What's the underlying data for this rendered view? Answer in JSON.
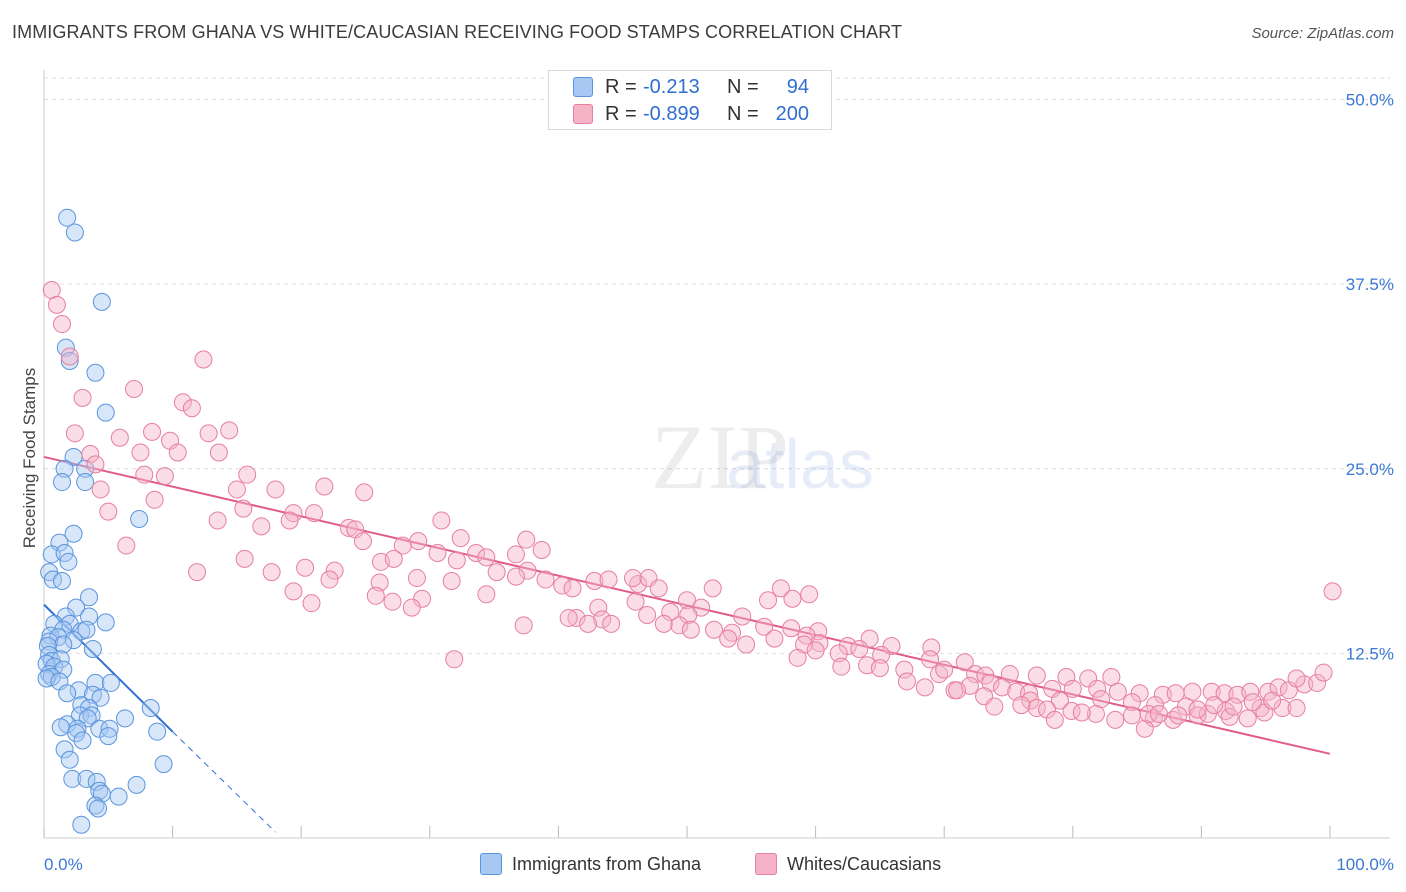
{
  "chart_data": {
    "type": "scatter",
    "title": "IMMIGRANTS FROM GHANA VS WHITE/CAUCASIAN RECEIVING FOOD STAMPS CORRELATION CHART",
    "source": "Source: ZipAtlas.com",
    "ylabel": "Receiving Food Stamps",
    "xlabel": "",
    "xlim": [
      0,
      100
    ],
    "ylim": [
      0,
      52
    ],
    "x_tick_labels": [
      "0.0%",
      "100.0%"
    ],
    "y_tick_values": [
      12.5,
      25.0,
      37.5,
      50.0
    ],
    "y_tick_labels": [
      "12.5%",
      "25.0%",
      "37.5%",
      "50.0%"
    ],
    "grid": true,
    "legend": {
      "position": "top-center",
      "entries": [
        {
          "r_label": "R =",
          "r": "-0.213",
          "n_label": "N =",
          "n": "94",
          "color": "#a7c8f2"
        },
        {
          "r_label": "R =",
          "r": "-0.899",
          "n_label": "N =",
          "n": "200",
          "color": "#f5b3c8"
        }
      ]
    },
    "watermark": "ZIPatlas",
    "series": [
      {
        "name": "Immigrants from Ghana",
        "color": "#a7c8f2",
        "stroke": "#5b95dd",
        "trend": {
          "x": [
            0,
            10
          ],
          "y": [
            15.8,
            7.2
          ],
          "dashed_to": [
            18,
            0.4
          ],
          "color": "#2f6fd0"
        },
        "points": [
          [
            1.8,
            42
          ],
          [
            2.4,
            41
          ],
          [
            4.5,
            36.3
          ],
          [
            1.7,
            33.2
          ],
          [
            2.0,
            32.3
          ],
          [
            4.0,
            31.5
          ],
          [
            4.8,
            28.8
          ],
          [
            2.3,
            25.8
          ],
          [
            1.6,
            25.0
          ],
          [
            3.2,
            25.0
          ],
          [
            1.4,
            24.1
          ],
          [
            3.2,
            24.1
          ],
          [
            7.4,
            21.6
          ],
          [
            2.3,
            20.6
          ],
          [
            1.2,
            20.0
          ],
          [
            0.6,
            19.2
          ],
          [
            1.6,
            19.3
          ],
          [
            1.9,
            18.7
          ],
          [
            0.4,
            18.0
          ],
          [
            0.7,
            17.5
          ],
          [
            1.4,
            17.4
          ],
          [
            3.5,
            16.3
          ],
          [
            2.5,
            15.6
          ],
          [
            1.7,
            15.0
          ],
          [
            3.5,
            15.0
          ],
          [
            4.8,
            14.6
          ],
          [
            2.0,
            14.5
          ],
          [
            0.8,
            14.5
          ],
          [
            1.5,
            14.1
          ],
          [
            2.9,
            14.0
          ],
          [
            3.3,
            14.1
          ],
          [
            0.5,
            13.7
          ],
          [
            1.1,
            13.6
          ],
          [
            0.4,
            13.3
          ],
          [
            2.3,
            13.4
          ],
          [
            1.5,
            13.1
          ],
          [
            0.3,
            13.0
          ],
          [
            3.8,
            12.8
          ],
          [
            0.4,
            12.4
          ],
          [
            0.6,
            12.0
          ],
          [
            1.3,
            12.1
          ],
          [
            0.2,
            11.8
          ],
          [
            0.8,
            11.6
          ],
          [
            1.5,
            11.4
          ],
          [
            0.4,
            11.1
          ],
          [
            0.6,
            10.9
          ],
          [
            0.2,
            10.8
          ],
          [
            1.2,
            10.6
          ],
          [
            4.0,
            10.5
          ],
          [
            5.2,
            10.5
          ],
          [
            2.7,
            10.0
          ],
          [
            1.8,
            9.8
          ],
          [
            3.8,
            9.7
          ],
          [
            4.4,
            9.5
          ],
          [
            2.9,
            9.0
          ],
          [
            3.5,
            8.8
          ],
          [
            8.3,
            8.8
          ],
          [
            2.8,
            8.3
          ],
          [
            3.7,
            8.3
          ],
          [
            6.3,
            8.1
          ],
          [
            3.4,
            8.1
          ],
          [
            1.8,
            7.7
          ],
          [
            1.3,
            7.5
          ],
          [
            2.6,
            7.4
          ],
          [
            4.3,
            7.4
          ],
          [
            5.1,
            7.4
          ],
          [
            8.8,
            7.2
          ],
          [
            2.5,
            7.1
          ],
          [
            5.0,
            6.9
          ],
          [
            3.0,
            6.6
          ],
          [
            1.6,
            6.0
          ],
          [
            2.0,
            5.3
          ],
          [
            9.3,
            5.0
          ],
          [
            2.2,
            4.0
          ],
          [
            3.3,
            4.0
          ],
          [
            4.1,
            3.8
          ],
          [
            7.2,
            3.6
          ],
          [
            4.3,
            3.2
          ],
          [
            4.5,
            3.0
          ],
          [
            5.8,
            2.8
          ],
          [
            4.0,
            2.2
          ],
          [
            4.2,
            2.0
          ],
          [
            2.9,
            0.9
          ]
        ]
      },
      {
        "name": "Whites/Caucasians",
        "color": "#f5b3c8",
        "stroke": "#e77fa0",
        "trend": {
          "x": [
            0,
            100
          ],
          "y": [
            25.8,
            5.7
          ],
          "color": "#e05c8a"
        },
        "points": [
          [
            0.6,
            37.1
          ],
          [
            1.0,
            36.1
          ],
          [
            1.4,
            34.8
          ],
          [
            2.0,
            32.6
          ],
          [
            12.4,
            32.4
          ],
          [
            3.0,
            29.8
          ],
          [
            7.0,
            30.4
          ],
          [
            10.8,
            29.5
          ],
          [
            11.5,
            29.1
          ],
          [
            8.4,
            27.5
          ],
          [
            12.8,
            27.4
          ],
          [
            14.4,
            27.6
          ],
          [
            2.4,
            27.4
          ],
          [
            5.9,
            27.1
          ],
          [
            9.8,
            26.9
          ],
          [
            3.6,
            26.0
          ],
          [
            7.5,
            26.1
          ],
          [
            10.4,
            26.1
          ],
          [
            13.6,
            26.1
          ],
          [
            4.0,
            25.3
          ],
          [
            15.8,
            24.6
          ],
          [
            7.8,
            24.6
          ],
          [
            9.4,
            24.5
          ],
          [
            4.4,
            23.6
          ],
          [
            21.8,
            23.8
          ],
          [
            15.0,
            23.6
          ],
          [
            18.0,
            23.6
          ],
          [
            24.9,
            23.4
          ],
          [
            8.6,
            22.9
          ],
          [
            5.0,
            22.1
          ],
          [
            21.0,
            22.0
          ],
          [
            15.5,
            22.3
          ],
          [
            19.4,
            22.0
          ],
          [
            13.5,
            21.5
          ],
          [
            16.9,
            21.1
          ],
          [
            19.1,
            21.5
          ],
          [
            23.7,
            21.0
          ],
          [
            30.9,
            21.5
          ],
          [
            32.4,
            20.3
          ],
          [
            37.5,
            20.2
          ],
          [
            24.2,
            20.9
          ],
          [
            36.7,
            19.2
          ],
          [
            24.8,
            20.1
          ],
          [
            29.1,
            20.1
          ],
          [
            30.6,
            19.3
          ],
          [
            33.6,
            19.3
          ],
          [
            38.7,
            19.5
          ],
          [
            6.4,
            19.8
          ],
          [
            27.9,
            19.8
          ],
          [
            26.2,
            18.7
          ],
          [
            34.4,
            19.0
          ],
          [
            27.2,
            18.9
          ],
          [
            15.6,
            18.9
          ],
          [
            20.3,
            18.3
          ],
          [
            32.1,
            18.8
          ],
          [
            37.6,
            18.1
          ],
          [
            35.2,
            18.0
          ],
          [
            11.9,
            18.0
          ],
          [
            17.7,
            18.0
          ],
          [
            22.6,
            18.1
          ],
          [
            29.0,
            17.6
          ],
          [
            42.8,
            17.4
          ],
          [
            31.7,
            17.4
          ],
          [
            36.7,
            17.7
          ],
          [
            39.0,
            17.5
          ],
          [
            46.2,
            17.2
          ],
          [
            43.9,
            17.5
          ],
          [
            45.8,
            17.6
          ],
          [
            47.0,
            17.6
          ],
          [
            22.2,
            17.5
          ],
          [
            26.1,
            17.3
          ],
          [
            40.3,
            17.1
          ],
          [
            41.1,
            16.9
          ],
          [
            52.0,
            16.9
          ],
          [
            47.8,
            16.9
          ],
          [
            57.3,
            16.9
          ],
          [
            19.4,
            16.7
          ],
          [
            34.4,
            16.5
          ],
          [
            25.8,
            16.4
          ],
          [
            27.1,
            16.0
          ],
          [
            46.0,
            16.0
          ],
          [
            29.4,
            16.2
          ],
          [
            50.0,
            16.1
          ],
          [
            56.3,
            16.1
          ],
          [
            58.2,
            16.2
          ],
          [
            20.8,
            15.9
          ],
          [
            28.6,
            15.6
          ],
          [
            43.1,
            15.6
          ],
          [
            51.1,
            15.6
          ],
          [
            59.5,
            16.5
          ],
          [
            46.9,
            15.1
          ],
          [
            48.7,
            15.3
          ],
          [
            50.1,
            15.1
          ],
          [
            54.3,
            15.0
          ],
          [
            41.4,
            14.9
          ],
          [
            40.8,
            14.9
          ],
          [
            43.4,
            14.8
          ],
          [
            37.3,
            14.4
          ],
          [
            42.3,
            14.5
          ],
          [
            44.1,
            14.5
          ],
          [
            48.2,
            14.5
          ],
          [
            49.4,
            14.4
          ],
          [
            50.3,
            14.1
          ],
          [
            52.1,
            14.1
          ],
          [
            53.5,
            13.9
          ],
          [
            56.0,
            14.3
          ],
          [
            58.1,
            14.2
          ],
          [
            60.2,
            14.0
          ],
          [
            59.3,
            13.7
          ],
          [
            53.2,
            13.5
          ],
          [
            56.8,
            13.5
          ],
          [
            54.6,
            13.1
          ],
          [
            60.3,
            13.2
          ],
          [
            59.1,
            13.1
          ],
          [
            62.5,
            13.0
          ],
          [
            64.2,
            13.5
          ],
          [
            65.9,
            13.0
          ],
          [
            69.0,
            12.9
          ],
          [
            60.0,
            12.7
          ],
          [
            61.8,
            12.5
          ],
          [
            63.4,
            12.8
          ],
          [
            65.1,
            12.4
          ],
          [
            68.9,
            12.1
          ],
          [
            58.6,
            12.2
          ],
          [
            71.6,
            11.9
          ],
          [
            62.0,
            11.6
          ],
          [
            64.0,
            11.7
          ],
          [
            66.9,
            11.4
          ],
          [
            69.6,
            11.1
          ],
          [
            72.4,
            11.1
          ],
          [
            73.2,
            11.0
          ],
          [
            75.1,
            11.1
          ],
          [
            77.2,
            11.0
          ],
          [
            79.5,
            10.9
          ],
          [
            81.2,
            10.8
          ],
          [
            83.0,
            10.9
          ],
          [
            65.0,
            11.5
          ],
          [
            70.0,
            11.4
          ],
          [
            31.9,
            12.1
          ],
          [
            67.1,
            10.6
          ],
          [
            68.5,
            10.2
          ],
          [
            70.8,
            10.0
          ],
          [
            72.0,
            10.3
          ],
          [
            73.6,
            10.5
          ],
          [
            74.5,
            10.2
          ],
          [
            75.6,
            9.9
          ],
          [
            76.6,
            9.8
          ],
          [
            78.4,
            10.1
          ],
          [
            80.0,
            10.1
          ],
          [
            81.9,
            10.1
          ],
          [
            83.5,
            9.9
          ],
          [
            85.2,
            9.8
          ],
          [
            87.0,
            9.7
          ],
          [
            88.0,
            9.8
          ],
          [
            89.3,
            9.9
          ],
          [
            90.8,
            9.9
          ],
          [
            91.8,
            9.8
          ],
          [
            92.8,
            9.7
          ],
          [
            93.8,
            9.9
          ],
          [
            95.2,
            9.9
          ],
          [
            96.0,
            10.2
          ],
          [
            96.8,
            10.0
          ],
          [
            98.0,
            10.4
          ],
          [
            99.0,
            10.5
          ],
          [
            99.5,
            11.2
          ],
          [
            100.2,
            16.7
          ],
          [
            97.4,
            10.8
          ],
          [
            71.0,
            10.0
          ],
          [
            73.1,
            9.6
          ],
          [
            76.7,
            9.3
          ],
          [
            79.0,
            9.3
          ],
          [
            82.2,
            9.4
          ],
          [
            84.6,
            9.2
          ],
          [
            86.4,
            9.0
          ],
          [
            88.8,
            8.9
          ],
          [
            91.9,
            8.6
          ],
          [
            94.6,
            8.8
          ],
          [
            73.9,
            8.9
          ],
          [
            77.2,
            8.8
          ],
          [
            79.9,
            8.6
          ],
          [
            81.8,
            8.4
          ],
          [
            83.3,
            8.0
          ],
          [
            84.6,
            8.3
          ],
          [
            86.3,
            8.1
          ],
          [
            87.8,
            8.0
          ],
          [
            88.2,
            8.3
          ],
          [
            89.7,
            8.3
          ],
          [
            90.5,
            8.4
          ],
          [
            92.2,
            8.2
          ],
          [
            93.6,
            8.1
          ],
          [
            94.9,
            8.5
          ],
          [
            80.7,
            8.5
          ],
          [
            78.0,
            8.7
          ],
          [
            76.0,
            9.0
          ],
          [
            78.6,
            8.0
          ],
          [
            85.6,
            7.4
          ],
          [
            85.9,
            8.4
          ],
          [
            86.7,
            8.4
          ],
          [
            96.3,
            8.8
          ],
          [
            97.4,
            8.8
          ],
          [
            89.7,
            8.7
          ],
          [
            91.0,
            9.0
          ],
          [
            92.5,
            8.9
          ],
          [
            94.0,
            9.2
          ],
          [
            95.5,
            9.3
          ]
        ]
      }
    ]
  }
}
